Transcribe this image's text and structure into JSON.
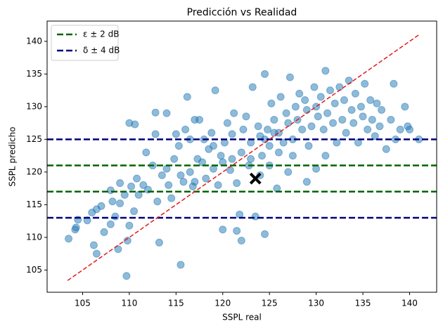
{
  "chart_data": {
    "type": "scatter",
    "title": "Predicción vs Realidad",
    "x_label": "SSPL real",
    "y_label": "SSPL predicho",
    "color": "#1f77b4",
    "x": [
      103.5,
      104.3,
      104.5,
      104.2,
      105.5,
      106,
      106.5,
      107,
      106.2,
      106.5,
      107.3,
      108,
      108.5,
      108.2,
      108,
      109,
      109.5,
      109,
      108.8,
      109.8,
      109.7,
      110,
      110.5,
      110.2,
      110.8,
      111,
      111.5,
      110,
      110.6,
      111.8,
      112,
      112.5,
      112.8,
      113,
      113.2,
      113.5,
      114,
      114.2,
      114.5,
      114.8,
      115,
      115.3,
      115.5,
      115.8,
      116,
      116.2,
      116.5,
      116.8,
      117,
      117.3,
      117.5,
      117.8,
      118,
      118.2,
      118.5,
      118.8,
      119,
      119.2,
      119.5,
      119.8,
      120,
      120.2,
      120.5,
      120.8,
      121,
      121.2,
      121.5,
      121.8,
      122,
      122.2,
      122.5,
      122.8,
      123,
      123.2,
      123.5,
      123.8,
      124,
      124.2,
      124.5,
      124.8,
      125,
      125.2,
      125.5,
      125.8,
      126,
      126.2,
      126.5,
      126.8,
      127,
      127.2,
      127.5,
      127.8,
      128,
      128.2,
      128.5,
      128.8,
      129,
      129.2,
      129.5,
      129.8,
      130,
      130.2,
      130.5,
      130.8,
      131,
      131.2,
      131.5,
      131.8,
      132,
      132.2,
      132.5,
      132.8,
      133,
      133.2,
      133.5,
      133.8,
      134,
      134.2,
      134.5,
      134.8,
      135,
      135.2,
      135.5,
      135.8,
      136,
      136.3,
      136.5,
      136.8,
      137,
      137.5,
      138,
      138.3,
      138.5,
      139,
      139.5,
      139.8,
      140,
      141,
      124,
      125,
      127,
      129,
      130,
      131,
      124.5,
      122,
      121.5,
      115.5,
      114,
      112.8,
      117,
      116.5,
      119,
      120,
      121,
      126,
      127.5,
      124.5,
      125.5,
      123
    ],
    "values": [
      109.8,
      111.5,
      112.7,
      111.2,
      112.6,
      113.8,
      114.3,
      114.8,
      108.8,
      107.5,
      110.8,
      112,
      113.2,
      115.5,
      117.2,
      118.3,
      116.5,
      115.2,
      108.2,
      109.5,
      104.1,
      111.8,
      114,
      117.8,
      119,
      116.5,
      118,
      127.5,
      127.3,
      123,
      117.3,
      121,
      129.1,
      115.5,
      109.2,
      119.5,
      120.5,
      118,
      116,
      122,
      125.8,
      124,
      119.5,
      118.5,
      126.5,
      131.5,
      120,
      117.8,
      118.5,
      122,
      128,
      121.5,
      125,
      119,
      123.5,
      126,
      120.5,
      132.5,
      118,
      122.5,
      111.2,
      124.5,
      127.5,
      120.3,
      125.8,
      129,
      118.3,
      113.5,
      123,
      126.5,
      128.5,
      121,
      124.5,
      133,
      113.2,
      127,
      125.5,
      122.5,
      135,
      126.5,
      124,
      130.5,
      128,
      117.5,
      126,
      131.5,
      124.5,
      129,
      127.5,
      134.5,
      125,
      130,
      128,
      132,
      126.5,
      131,
      129.5,
      124,
      127,
      133,
      130,
      128.5,
      131.5,
      126.5,
      135.5,
      129,
      132.5,
      127.5,
      130.5,
      124.5,
      133,
      128,
      131,
      126,
      134,
      129.5,
      127.5,
      132,
      124.5,
      130,
      128.5,
      133.5,
      126.5,
      131,
      128,
      125.5,
      130.5,
      127,
      129.5,
      123.5,
      128,
      133.5,
      125,
      126.5,
      130,
      127,
      126.5,
      125,
      119.5,
      121,
      120,
      118.5,
      120.5,
      122.5,
      110.5,
      109.5,
      111,
      105.8,
      129,
      125.8,
      128,
      125,
      124,
      121.5,
      122,
      123,
      122.5,
      125,
      126,
      122
    ],
    "reference_lines": [
      {
        "name": "ε ± 2 dB",
        "color": "#006400",
        "values": [
          117,
          121
        ]
      },
      {
        "name": "δ ± 4 dB",
        "color": "#000080",
        "values": [
          113,
          125
        ]
      }
    ],
    "diagonal": [
      103.4,
      141
    ],
    "diagonal_color": "#e31a1c",
    "marker": {
      "x": 123.5,
      "y": 119
    },
    "xlim": [
      101.2,
      142.9
    ],
    "ylim": [
      101.6,
      143.1
    ],
    "xticks": [
      105,
      110,
      115,
      120,
      125,
      130,
      135,
      140
    ],
    "yticks": [
      105,
      110,
      115,
      120,
      125,
      130,
      135,
      140
    ],
    "legend": "upper left"
  }
}
